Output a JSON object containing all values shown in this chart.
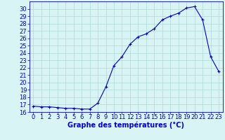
{
  "x": [
    0,
    1,
    2,
    3,
    4,
    5,
    6,
    7,
    8,
    9,
    10,
    11,
    12,
    13,
    14,
    15,
    16,
    17,
    18,
    19,
    20,
    21,
    22,
    23
  ],
  "y": [
    16.8,
    16.7,
    16.7,
    16.6,
    16.5,
    16.5,
    16.4,
    16.4,
    17.2,
    19.4,
    22.3,
    23.5,
    25.2,
    26.2,
    26.6,
    27.3,
    28.5,
    29.0,
    29.4,
    30.1,
    30.3,
    28.5,
    23.5,
    21.5
  ],
  "xlabel": "Graphe des températures (°C)",
  "xlim": [
    -0.5,
    23.5
  ],
  "ylim": [
    16,
    31
  ],
  "yticks": [
    16,
    17,
    18,
    19,
    20,
    21,
    22,
    23,
    24,
    25,
    26,
    27,
    28,
    29,
    30
  ],
  "xticks": [
    0,
    1,
    2,
    3,
    4,
    5,
    6,
    7,
    8,
    9,
    10,
    11,
    12,
    13,
    14,
    15,
    16,
    17,
    18,
    19,
    20,
    21,
    22,
    23
  ],
  "line_color": "#0000cc",
  "marker": "+",
  "bg_color": "#d8f4f4",
  "grid_color": "#b0d8d8",
  "axis_color": "#0000cc",
  "label_color": "#0000cc",
  "tick_color": "#0000cc",
  "font_size": 6,
  "label_font_size": 7
}
